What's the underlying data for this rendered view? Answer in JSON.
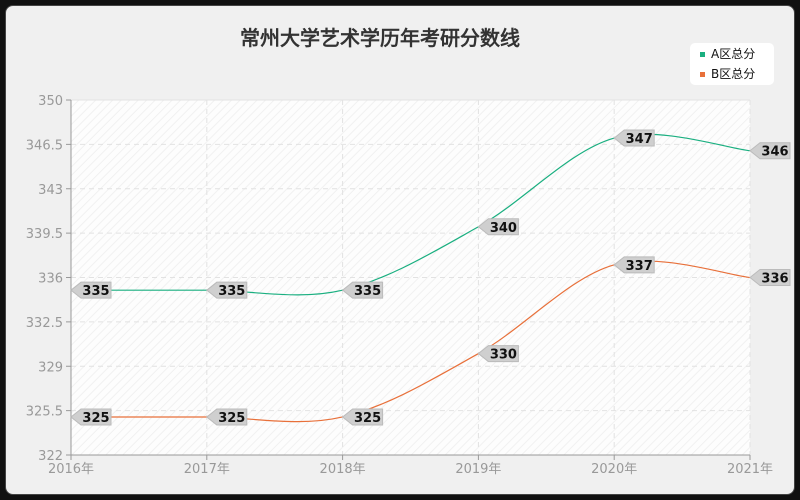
{
  "chart_data": {
    "type": "line",
    "title": "常州大学艺术学历年考研分数线",
    "categories": [
      "2016年",
      "2017年",
      "2018年",
      "2019年",
      "2020年",
      "2021年"
    ],
    "series": [
      {
        "name": "A区总分",
        "values": [
          335,
          335,
          335,
          340,
          347,
          346
        ],
        "color": "#1aaf80"
      },
      {
        "name": "B区总分",
        "values": [
          325,
          325,
          325,
          330,
          337,
          336
        ],
        "color": "#e8703a"
      }
    ],
    "ylim": [
      322,
      350
    ],
    "yticks": [
      "322",
      "325.5",
      "329",
      "332.5",
      "336",
      "339.5",
      "343",
      "346.5",
      "350"
    ],
    "smooth": true,
    "grid": true,
    "legend": "top-right",
    "xlabel": "",
    "ylabel": ""
  }
}
